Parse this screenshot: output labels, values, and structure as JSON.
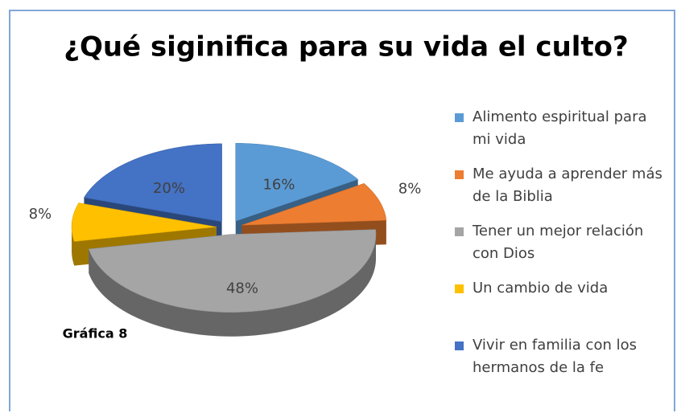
{
  "chart_data": {
    "type": "pie",
    "title": "¿Qué siginifica para su vida el culto?",
    "categories": [
      "Alimento espiritual para mi vida",
      "Me ayuda a aprender más de la Biblia",
      "Tener un mejor relación con Dios",
      "Un cambio de vida",
      "Vivir en familia con los hermanos de la fe"
    ],
    "values": [
      16,
      8,
      48,
      8,
      20
    ],
    "value_labels": [
      "16%",
      "8%",
      "48%",
      "8%",
      "20%"
    ],
    "colors": [
      "#5b9bd5",
      "#ed7d31",
      "#a5a5a5",
      "#ffc000",
      "#4472c4"
    ],
    "annotation": "Gráfica 8",
    "legend": "right"
  }
}
